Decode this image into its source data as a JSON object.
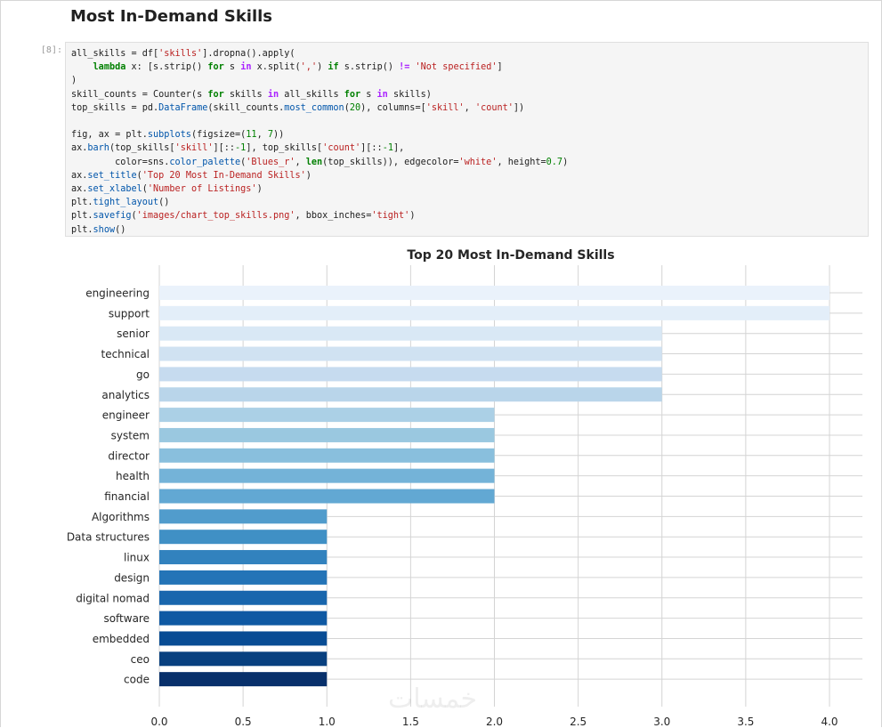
{
  "notebook": {
    "heading": "Most In-Demand Skills",
    "cell_prompt": "[8]:",
    "code_lines": [
      [
        {
          "t": "all_skills = df["
        },
        {
          "t": "'skills'",
          "c": "st"
        },
        {
          "t": "].dropna().apply("
        }
      ],
      [
        {
          "t": "    "
        },
        {
          "t": "lambda",
          "c": "kw"
        },
        {
          "t": " x: [s.strip() "
        },
        {
          "t": "for",
          "c": "kw"
        },
        {
          "t": " s "
        },
        {
          "t": "in",
          "c": "op"
        },
        {
          "t": " x.split("
        },
        {
          "t": "','",
          "c": "st"
        },
        {
          "t": ") "
        },
        {
          "t": "if",
          "c": "kw"
        },
        {
          "t": " s.strip() "
        },
        {
          "t": "!=",
          "c": "op"
        },
        {
          "t": " "
        },
        {
          "t": "'Not specified'",
          "c": "st"
        },
        {
          "t": "]"
        }
      ],
      [
        {
          "t": ")"
        }
      ],
      [
        {
          "t": "skill_counts = Counter(s "
        },
        {
          "t": "for",
          "c": "kw"
        },
        {
          "t": " skills "
        },
        {
          "t": "in",
          "c": "op"
        },
        {
          "t": " all_skills "
        },
        {
          "t": "for",
          "c": "kw"
        },
        {
          "t": " s "
        },
        {
          "t": "in",
          "c": "op"
        },
        {
          "t": " skills)"
        }
      ],
      [
        {
          "t": "top_skills = pd."
        },
        {
          "t": "DataFrame",
          "c": "fn"
        },
        {
          "t": "(skill_counts."
        },
        {
          "t": "most_common",
          "c": "fn"
        },
        {
          "t": "("
        },
        {
          "t": "20",
          "c": "nu"
        },
        {
          "t": "), columns=["
        },
        {
          "t": "'skill'",
          "c": "st"
        },
        {
          "t": ", "
        },
        {
          "t": "'count'",
          "c": "st"
        },
        {
          "t": "])"
        }
      ],
      [
        {
          "t": ""
        }
      ],
      [
        {
          "t": "fig, ax = plt."
        },
        {
          "t": "subplots",
          "c": "fn"
        },
        {
          "t": "(figsize=("
        },
        {
          "t": "11",
          "c": "nu"
        },
        {
          "t": ", "
        },
        {
          "t": "7",
          "c": "nu"
        },
        {
          "t": "))"
        }
      ],
      [
        {
          "t": "ax."
        },
        {
          "t": "barh",
          "c": "fn"
        },
        {
          "t": "(top_skills["
        },
        {
          "t": "'skill'",
          "c": "st"
        },
        {
          "t": "][::"
        },
        {
          "t": "-1",
          "c": "nu"
        },
        {
          "t": "], top_skills["
        },
        {
          "t": "'count'",
          "c": "st"
        },
        {
          "t": "][::"
        },
        {
          "t": "-1",
          "c": "nu"
        },
        {
          "t": "],"
        }
      ],
      [
        {
          "t": "        color=sns."
        },
        {
          "t": "color_palette",
          "c": "fn"
        },
        {
          "t": "("
        },
        {
          "t": "'Blues_r'",
          "c": "st"
        },
        {
          "t": ", "
        },
        {
          "t": "len",
          "c": "kw"
        },
        {
          "t": "(top_skills)), edgecolor="
        },
        {
          "t": "'white'",
          "c": "st"
        },
        {
          "t": ", height="
        },
        {
          "t": "0.7",
          "c": "nu"
        },
        {
          "t": ")"
        }
      ],
      [
        {
          "t": "ax."
        },
        {
          "t": "set_title",
          "c": "fn"
        },
        {
          "t": "("
        },
        {
          "t": "'Top 20 Most In-Demand Skills'",
          "c": "st"
        },
        {
          "t": ")"
        }
      ],
      [
        {
          "t": "ax."
        },
        {
          "t": "set_xlabel",
          "c": "fn"
        },
        {
          "t": "("
        },
        {
          "t": "'Number of Listings'",
          "c": "st"
        },
        {
          "t": ")"
        }
      ],
      [
        {
          "t": "plt."
        },
        {
          "t": "tight_layout",
          "c": "fn"
        },
        {
          "t": "()"
        }
      ],
      [
        {
          "t": "plt."
        },
        {
          "t": "savefig",
          "c": "fn"
        },
        {
          "t": "("
        },
        {
          "t": "'images/chart_top_skills.png'",
          "c": "st"
        },
        {
          "t": ", bbox_inches="
        },
        {
          "t": "'tight'",
          "c": "st"
        },
        {
          "t": ")"
        }
      ],
      [
        {
          "t": "plt."
        },
        {
          "t": "show",
          "c": "fn"
        },
        {
          "t": "()"
        }
      ]
    ],
    "watermark": "خمسات"
  },
  "chart_data": {
    "type": "bar",
    "orientation": "horizontal",
    "title": "Top 20 Most In-Demand Skills",
    "xlabel": "",
    "ylabel": "",
    "xlim": [
      0,
      4.2
    ],
    "xticks": [
      "0.0",
      "0.5",
      "1.0",
      "1.5",
      "2.0",
      "2.5",
      "3.0",
      "3.5",
      "4.0"
    ],
    "grid": true,
    "categories": [
      "engineering",
      "support",
      "senior",
      "technical",
      "go",
      "analytics",
      "engineer",
      "system",
      "director",
      "health",
      "financial",
      "Algorithms",
      "Data structures",
      "linux",
      "design",
      "digital nomad",
      "software",
      "embedded",
      "ceo",
      "code"
    ],
    "values": [
      4,
      4,
      3,
      3,
      3,
      3,
      2,
      2,
      2,
      2,
      2,
      1,
      1,
      1,
      1,
      1,
      1,
      1,
      1,
      1
    ],
    "colors": [
      "#eaf2fb",
      "#e3eef9",
      "#d9e8f5",
      "#d0e2f2",
      "#c6dbef",
      "#b9d5ea",
      "#abd0e6",
      "#9ac8e0",
      "#89bfdd",
      "#74b3d8",
      "#62a8d3",
      "#519ccc",
      "#4090c5",
      "#3282be",
      "#2474b7",
      "#1966ad",
      "#0f59a3",
      "#084c94",
      "#08407f",
      "#08306b"
    ]
  }
}
